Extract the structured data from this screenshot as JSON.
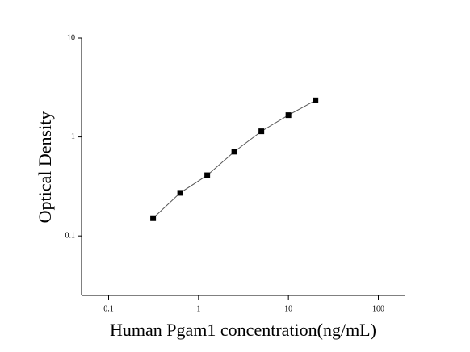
{
  "chart_data": {
    "type": "scatter",
    "x_label": "Human Pgam1 concentration(ng/mL)",
    "y_label": "Optical Density",
    "x": [
      0.3125,
      0.625,
      1.25,
      2.5,
      5,
      10,
      20
    ],
    "values": [
      0.151,
      0.272,
      0.41,
      0.71,
      1.14,
      1.66,
      2.34
    ],
    "color": "#000000",
    "line_color": "#555555",
    "xscale": "log",
    "yscale": "log",
    "xlim": [
      0.05,
      200
    ],
    "ylim": [
      0.025,
      10
    ],
    "xticks": [
      0.1,
      1,
      10,
      100
    ],
    "yticks": [
      0.1,
      1,
      10
    ],
    "grid": false
  }
}
